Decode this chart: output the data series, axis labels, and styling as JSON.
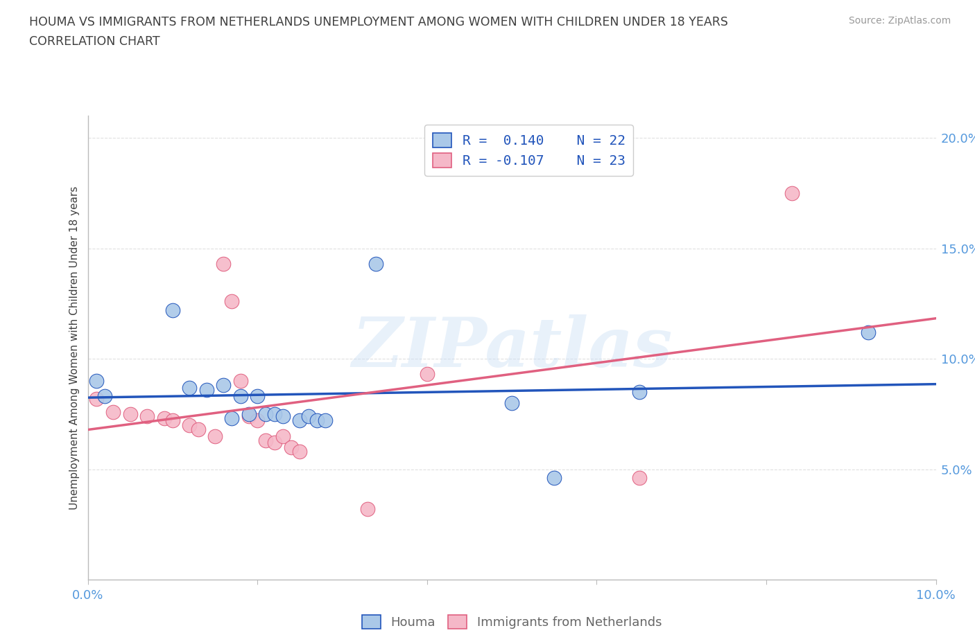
{
  "title_line1": "HOUMA VS IMMIGRANTS FROM NETHERLANDS UNEMPLOYMENT AMONG WOMEN WITH CHILDREN UNDER 18 YEARS",
  "title_line2": "CORRELATION CHART",
  "source_text": "Source: ZipAtlas.com",
  "ylabel": "Unemployment Among Women with Children Under 18 years",
  "xlim": [
    0.0,
    0.1
  ],
  "ylim": [
    0.0,
    0.21
  ],
  "yticks": [
    0.05,
    0.1,
    0.15,
    0.2
  ],
  "xticks": [
    0.0,
    0.02,
    0.04,
    0.06,
    0.08,
    0.1
  ],
  "houma_x": [
    0.001,
    0.002,
    0.01,
    0.012,
    0.014,
    0.016,
    0.017,
    0.018,
    0.019,
    0.02,
    0.021,
    0.022,
    0.023,
    0.025,
    0.026,
    0.027,
    0.028,
    0.034,
    0.05,
    0.055,
    0.065,
    0.092
  ],
  "houma_y": [
    0.09,
    0.083,
    0.122,
    0.087,
    0.086,
    0.088,
    0.073,
    0.083,
    0.075,
    0.083,
    0.075,
    0.075,
    0.074,
    0.072,
    0.074,
    0.072,
    0.072,
    0.143,
    0.08,
    0.046,
    0.085,
    0.112
  ],
  "netherlands_x": [
    0.001,
    0.003,
    0.005,
    0.007,
    0.009,
    0.01,
    0.012,
    0.013,
    0.015,
    0.016,
    0.017,
    0.018,
    0.019,
    0.02,
    0.021,
    0.022,
    0.023,
    0.024,
    0.025,
    0.033,
    0.04,
    0.065,
    0.083
  ],
  "netherlands_y": [
    0.082,
    0.076,
    0.075,
    0.074,
    0.073,
    0.072,
    0.07,
    0.068,
    0.065,
    0.143,
    0.126,
    0.09,
    0.074,
    0.072,
    0.063,
    0.062,
    0.065,
    0.06,
    0.058,
    0.032,
    0.093,
    0.046,
    0.175
  ],
  "houma_R": 0.14,
  "houma_N": 22,
  "netherlands_R": -0.107,
  "netherlands_N": 23,
  "houma_color": "#aac8e8",
  "houma_line_color": "#2255bb",
  "netherlands_color": "#f5b8c8",
  "netherlands_line_color": "#e06080",
  "background_color": "#ffffff",
  "watermark_text": "ZIPatlas",
  "grid_color": "#dddddd",
  "title_color": "#404040",
  "axis_color": "#5599dd",
  "legend_R_color": "#2255bb",
  "bottom_label_color": "#666666"
}
